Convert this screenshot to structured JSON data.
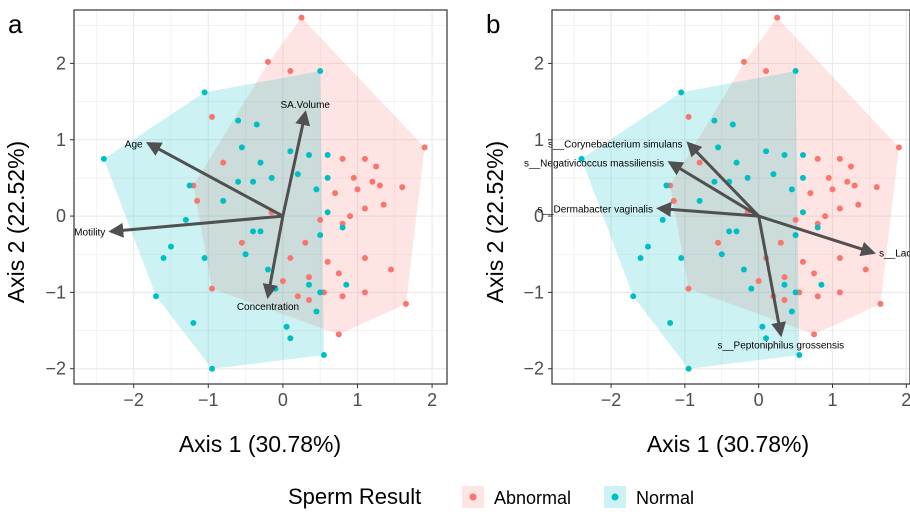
{
  "colors": {
    "abnormal": "#F8766D",
    "normal": "#00BFC4",
    "arrow": "#505050",
    "grid": "#ebebeb",
    "border": "#333333"
  },
  "legend": {
    "title": "Sperm Result",
    "items": [
      {
        "label": "Abnormal",
        "color": "#F8766D"
      },
      {
        "label": "Normal",
        "color": "#00BFC4"
      }
    ]
  },
  "chart_data": [
    {
      "type": "scatter",
      "panel_label": "a",
      "xlabel": "Axis 1 (30.78%)",
      "ylabel": "Axis 2 (22.52%)",
      "xlim": [
        -2.8,
        2.2
      ],
      "ylim": [
        -2.2,
        2.7
      ],
      "xticks": [
        -2,
        -1,
        0,
        1,
        2
      ],
      "yticks": [
        -2,
        -1,
        0,
        1,
        2
      ],
      "grid": true,
      "hulls": {
        "Abnormal": [
          [
            0.25,
            2.6
          ],
          [
            1.9,
            0.9
          ],
          [
            1.65,
            -1.15
          ],
          [
            0.75,
            -1.55
          ],
          [
            -0.95,
            -0.95
          ],
          [
            -1.2,
            0.4
          ],
          [
            -0.2,
            2.0
          ]
        ],
        "Normal": [
          [
            -2.4,
            0.75
          ],
          [
            -1.05,
            1.62
          ],
          [
            0.5,
            1.9
          ],
          [
            0.55,
            -1.82
          ],
          [
            -0.95,
            -2.0
          ],
          [
            -1.7,
            -1.05
          ]
        ]
      },
      "series": [
        {
          "name": "Abnormal",
          "points": [
            [
              0.25,
              2.6
            ],
            [
              -0.2,
              2.02
            ],
            [
              0.1,
              1.9
            ],
            [
              -0.95,
              1.3
            ],
            [
              0.8,
              0.75
            ],
            [
              1.1,
              0.75
            ],
            [
              1.25,
              0.65
            ],
            [
              0.95,
              0.5
            ],
            [
              1.2,
              0.45
            ],
            [
              1.3,
              0.4
            ],
            [
              1.6,
              0.38
            ],
            [
              1.9,
              0.9
            ],
            [
              0.7,
              0.3
            ],
            [
              1.0,
              0.35
            ],
            [
              1.1,
              0.1
            ],
            [
              1.35,
              0.15
            ],
            [
              0.9,
              0.0
            ],
            [
              -0.15,
              0.05
            ],
            [
              0.5,
              -0.05
            ],
            [
              0.8,
              -0.1
            ],
            [
              -1.2,
              0.4
            ],
            [
              -1.15,
              0.2
            ],
            [
              -0.55,
              -0.35
            ],
            [
              0.1,
              -0.55
            ],
            [
              0.3,
              -0.35
            ],
            [
              0.6,
              -0.6
            ],
            [
              0.75,
              -0.75
            ],
            [
              1.1,
              -0.55
            ],
            [
              1.45,
              -0.7
            ],
            [
              1.65,
              -1.15
            ],
            [
              0.8,
              -1.05
            ],
            [
              1.1,
              -1.0
            ],
            [
              0.35,
              -0.8
            ],
            [
              0.55,
              -1.0
            ],
            [
              0.75,
              -1.55
            ],
            [
              -0.95,
              -0.95
            ],
            [
              0.0,
              -0.85
            ],
            [
              0.2,
              -1.05
            ],
            [
              0.35,
              -1.1
            ],
            [
              -0.8,
              0.7
            ]
          ]
        },
        {
          "name": "Normal",
          "points": [
            [
              0.5,
              1.9
            ],
            [
              -1.05,
              1.62
            ],
            [
              -0.6,
              1.25
            ],
            [
              -0.35,
              1.2
            ],
            [
              -0.55,
              0.9
            ],
            [
              -0.3,
              0.7
            ],
            [
              0.1,
              0.85
            ],
            [
              0.35,
              0.8
            ],
            [
              0.6,
              0.8
            ],
            [
              -0.6,
              0.45
            ],
            [
              -0.8,
              0.2
            ],
            [
              -0.4,
              0.45
            ],
            [
              -0.15,
              0.5
            ],
            [
              0.2,
              0.55
            ],
            [
              0.45,
              0.35
            ],
            [
              0.6,
              0.5
            ],
            [
              -1.25,
              0.4
            ],
            [
              -1.3,
              -0.05
            ],
            [
              -2.4,
              0.75
            ],
            [
              -0.4,
              -0.2
            ],
            [
              -0.3,
              -0.2
            ],
            [
              0.5,
              -0.25
            ],
            [
              0.8,
              -0.15
            ],
            [
              -1.5,
              -0.4
            ],
            [
              -1.6,
              -0.55
            ],
            [
              -1.05,
              -0.55
            ],
            [
              -0.5,
              -0.5
            ],
            [
              -0.2,
              -0.7
            ],
            [
              -0.1,
              -0.95
            ],
            [
              0.35,
              -0.9
            ],
            [
              0.5,
              -1.0
            ],
            [
              0.85,
              -0.9
            ],
            [
              -1.7,
              -1.05
            ],
            [
              -1.2,
              -1.4
            ],
            [
              0.05,
              -1.45
            ],
            [
              0.45,
              -1.25
            ],
            [
              0.55,
              -1.82
            ],
            [
              -0.95,
              -2.0
            ],
            [
              0.1,
              -1.6
            ],
            [
              0.6,
              0.05
            ]
          ]
        }
      ],
      "arrows": [
        {
          "label": "Age",
          "x": -1.8,
          "y": 0.95
        },
        {
          "label": "SA.Volume",
          "x": 0.3,
          "y": 1.35
        },
        {
          "label": "Motility",
          "x": -2.3,
          "y": -0.2
        },
        {
          "label": "Concentration",
          "x": -0.2,
          "y": -1.05
        }
      ]
    },
    {
      "type": "scatter",
      "panel_label": "b",
      "xlabel": "Axis 1 (30.78%)",
      "ylabel": "Axis 2 (22.52%)",
      "xlim": [
        -2.8,
        2.05
      ],
      "ylim": [
        -2.2,
        2.7
      ],
      "xticks": [
        -2,
        -1,
        0,
        1,
        2
      ],
      "yticks": [
        -2,
        -1,
        0,
        1,
        2
      ],
      "grid": true,
      "hulls": {
        "Abnormal": [
          [
            0.25,
            2.6
          ],
          [
            1.9,
            0.9
          ],
          [
            1.65,
            -1.15
          ],
          [
            0.75,
            -1.55
          ],
          [
            -0.95,
            -0.95
          ],
          [
            -1.2,
            0.4
          ],
          [
            -0.2,
            2.0
          ]
        ],
        "Normal": [
          [
            -2.4,
            0.75
          ],
          [
            -1.05,
            1.62
          ],
          [
            0.5,
            1.9
          ],
          [
            0.55,
            -1.82
          ],
          [
            -0.95,
            -2.0
          ],
          [
            -1.7,
            -1.05
          ]
        ]
      },
      "series": [
        {
          "name": "Abnormal",
          "points": [
            [
              0.25,
              2.6
            ],
            [
              -0.2,
              2.02
            ],
            [
              0.1,
              1.9
            ],
            [
              -0.95,
              1.3
            ],
            [
              0.8,
              0.75
            ],
            [
              1.1,
              0.75
            ],
            [
              1.25,
              0.65
            ],
            [
              0.95,
              0.5
            ],
            [
              1.2,
              0.45
            ],
            [
              1.3,
              0.4
            ],
            [
              1.6,
              0.38
            ],
            [
              1.9,
              0.9
            ],
            [
              0.7,
              0.3
            ],
            [
              1.0,
              0.35
            ],
            [
              1.1,
              0.1
            ],
            [
              1.35,
              0.15
            ],
            [
              0.9,
              0.0
            ],
            [
              -0.15,
              0.05
            ],
            [
              0.5,
              -0.05
            ],
            [
              0.8,
              -0.1
            ],
            [
              -1.2,
              0.4
            ],
            [
              -1.15,
              0.2
            ],
            [
              -0.55,
              -0.35
            ],
            [
              0.1,
              -0.55
            ],
            [
              0.3,
              -0.35
            ],
            [
              0.6,
              -0.6
            ],
            [
              0.75,
              -0.75
            ],
            [
              1.1,
              -0.55
            ],
            [
              1.45,
              -0.7
            ],
            [
              1.65,
              -1.15
            ],
            [
              0.8,
              -1.05
            ],
            [
              1.1,
              -1.0
            ],
            [
              0.35,
              -0.8
            ],
            [
              0.55,
              -1.0
            ],
            [
              0.75,
              -1.55
            ],
            [
              -0.95,
              -0.95
            ],
            [
              0.0,
              -0.85
            ],
            [
              0.2,
              -1.05
            ],
            [
              0.35,
              -1.1
            ],
            [
              -0.8,
              0.7
            ]
          ]
        },
        {
          "name": "Normal",
          "points": [
            [
              0.5,
              1.9
            ],
            [
              -1.05,
              1.62
            ],
            [
              -0.6,
              1.25
            ],
            [
              -0.35,
              1.2
            ],
            [
              -0.55,
              0.9
            ],
            [
              -0.3,
              0.7
            ],
            [
              0.1,
              0.85
            ],
            [
              0.35,
              0.8
            ],
            [
              0.6,
              0.8
            ],
            [
              -0.6,
              0.45
            ],
            [
              -0.8,
              0.2
            ],
            [
              -0.4,
              0.45
            ],
            [
              -0.15,
              0.5
            ],
            [
              0.2,
              0.55
            ],
            [
              0.45,
              0.35
            ],
            [
              0.6,
              0.5
            ],
            [
              -1.25,
              0.4
            ],
            [
              -1.3,
              -0.05
            ],
            [
              -2.4,
              0.75
            ],
            [
              -0.4,
              -0.2
            ],
            [
              -0.3,
              -0.2
            ],
            [
              0.5,
              -0.25
            ],
            [
              0.8,
              -0.15
            ],
            [
              -1.5,
              -0.4
            ],
            [
              -1.6,
              -0.55
            ],
            [
              -1.05,
              -0.55
            ],
            [
              -0.5,
              -0.5
            ],
            [
              -0.2,
              -0.7
            ],
            [
              -0.1,
              -0.95
            ],
            [
              0.35,
              -0.9
            ],
            [
              0.5,
              -1.0
            ],
            [
              0.85,
              -0.9
            ],
            [
              -1.7,
              -1.05
            ],
            [
              -1.2,
              -1.4
            ],
            [
              0.05,
              -1.45
            ],
            [
              0.45,
              -1.25
            ],
            [
              0.55,
              -1.82
            ],
            [
              -0.95,
              -2.0
            ],
            [
              0.1,
              -1.6
            ],
            [
              0.6,
              0.05
            ]
          ]
        }
      ],
      "arrows": [
        {
          "label": "s__Corynebacterium simulans",
          "x": -0.95,
          "y": 0.95
        },
        {
          "label": "s__Negativicoccus massiliensis",
          "x": -1.2,
          "y": 0.7
        },
        {
          "label": "s__Dermabacter vaginalis",
          "x": -1.35,
          "y": 0.1
        },
        {
          "label": "s__Lactobacillus iners",
          "x": 1.55,
          "y": -0.48
        },
        {
          "label": "s__Peptoniphilus grossensis",
          "x": 0.3,
          "y": -1.55
        }
      ]
    }
  ]
}
